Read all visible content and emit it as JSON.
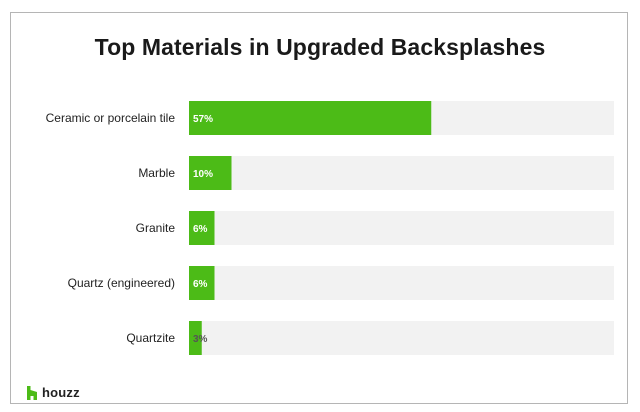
{
  "chart_data": {
    "type": "bar",
    "orientation": "horizontal",
    "title": "Top Materials in Upgraded Backsplashes",
    "categories": [
      "Ceramic or porcelain tile",
      "Marble",
      "Granite",
      "Quartz (engineered)",
      "Quartzite"
    ],
    "values": [
      57,
      10,
      6,
      6,
      3
    ],
    "data_labels": [
      "57%",
      "10%",
      "6%",
      "6%",
      "3%"
    ],
    "xlim": [
      0,
      100
    ],
    "colors": {
      "bar": "#4cbb17",
      "track": "#f2f2f2",
      "label_inside": "#ffffff",
      "label_outside": "#555555"
    }
  },
  "brand": {
    "name": "houzz",
    "color": "#4cbb17"
  }
}
